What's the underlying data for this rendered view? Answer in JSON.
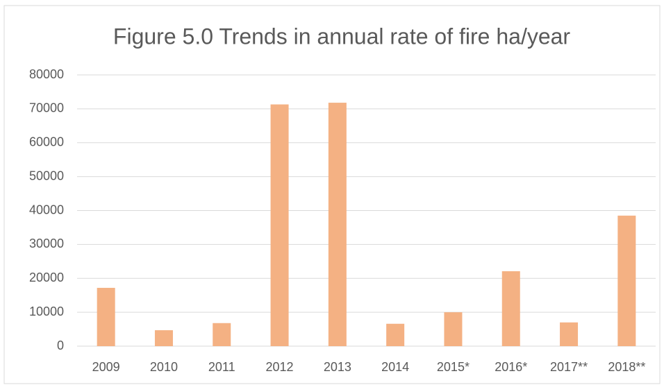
{
  "chart_data": {
    "type": "bar",
    "title": "Figure 5.0 Trends in annual rate of fire ha/year",
    "categories": [
      "2009",
      "2010",
      "2011",
      "2012",
      "2013",
      "2014",
      "2015*",
      "2016*",
      "2017**",
      "2018**"
    ],
    "values": [
      17200,
      4700,
      6800,
      71300,
      71800,
      6600,
      10000,
      22100,
      7000,
      38500
    ],
    "color": "#f4b183",
    "ylim": [
      0,
      80000
    ],
    "yticks": [
      0,
      10000,
      20000,
      30000,
      40000,
      50000,
      60000,
      70000,
      80000
    ],
    "grid": true
  }
}
